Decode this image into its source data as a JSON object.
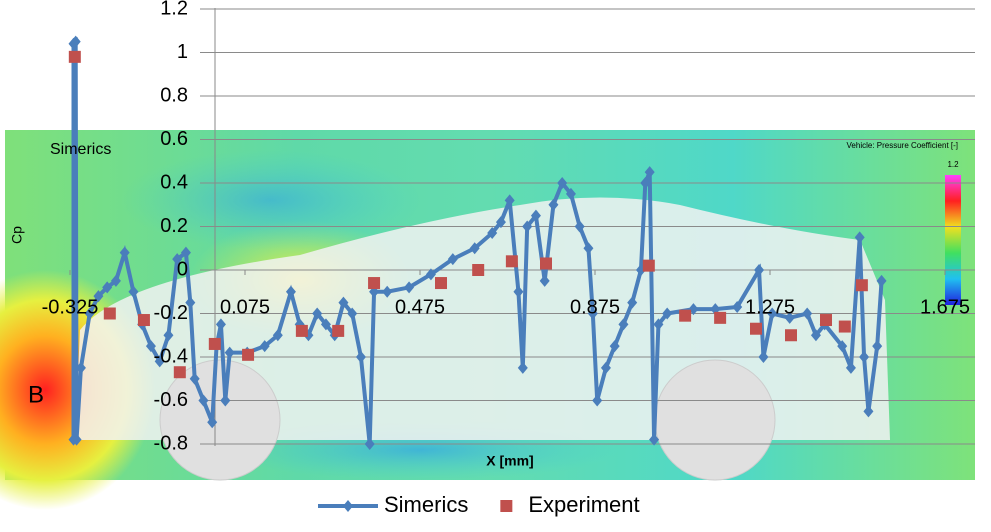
{
  "chart_data": {
    "type": "line",
    "ylabel": "Cp",
    "xlabel": "X [mm]",
    "xlim": [
      -0.325,
      1.675
    ],
    "xticks": [
      -0.325,
      0.075,
      0.475,
      0.875,
      1.275,
      1.675
    ],
    "ylim": [
      -0.8,
      1.2
    ],
    "yticks": [
      1.2,
      1,
      0.8,
      0.6,
      0.4,
      0.2,
      0,
      -0.2,
      -0.4,
      -0.6,
      -0.8
    ],
    "grid": true,
    "annotations": [
      "B",
      "Simerics",
      "Vehicle: Pressure Coefficient [-]",
      "1.2"
    ],
    "series": [
      {
        "name": "Simerics",
        "color": "#4a7ebb",
        "marker": "diamond",
        "line": true,
        "x": [
          -0.317,
          -0.317,
          -0.312,
          -0.31,
          -0.3,
          -0.28,
          -0.26,
          -0.24,
          -0.22,
          -0.2,
          -0.18,
          -0.16,
          -0.14,
          -0.12,
          -0.1,
          -0.08,
          -0.06,
          -0.05,
          -0.04,
          -0.02,
          0.0,
          0.01,
          0.02,
          0.03,
          0.04,
          0.08,
          0.12,
          0.15,
          0.18,
          0.2,
          0.22,
          0.24,
          0.26,
          0.28,
          0.3,
          0.32,
          0.34,
          0.36,
          0.37,
          0.4,
          0.45,
          0.5,
          0.55,
          0.6,
          0.64,
          0.66,
          0.68,
          0.7,
          0.71,
          0.72,
          0.74,
          0.76,
          0.78,
          0.8,
          0.82,
          0.84,
          0.86,
          0.87,
          0.88,
          0.9,
          0.92,
          0.94,
          0.96,
          0.98,
          0.99,
          1.0,
          1.01,
          1.02,
          1.04,
          1.1,
          1.15,
          1.2,
          1.25,
          1.26,
          1.28,
          1.32,
          1.36,
          1.38,
          1.4,
          1.44,
          1.46,
          1.48,
          1.49,
          1.5,
          1.52,
          1.53
        ],
        "values": [
          -0.78,
          1.04,
          1.05,
          -0.78,
          -0.45,
          -0.2,
          -0.12,
          -0.08,
          -0.05,
          0.08,
          -0.1,
          -0.25,
          -0.35,
          -0.42,
          -0.3,
          0.05,
          0.08,
          -0.15,
          -0.5,
          -0.6,
          -0.7,
          -0.35,
          -0.25,
          -0.6,
          -0.38,
          -0.38,
          -0.35,
          -0.3,
          -0.1,
          -0.25,
          -0.3,
          -0.2,
          -0.25,
          -0.3,
          -0.15,
          -0.2,
          -0.4,
          -0.8,
          -0.1,
          -0.1,
          -0.08,
          -0.02,
          0.05,
          0.1,
          0.17,
          0.22,
          0.32,
          -0.1,
          -0.45,
          0.2,
          0.25,
          -0.05,
          0.3,
          0.4,
          0.35,
          0.2,
          0.1,
          -0.2,
          -0.6,
          -0.45,
          -0.35,
          -0.25,
          -0.15,
          0.0,
          0.4,
          0.45,
          -0.78,
          -0.25,
          -0.2,
          -0.18,
          -0.18,
          -0.17,
          0.0,
          -0.4,
          -0.2,
          -0.22,
          -0.2,
          -0.3,
          -0.25,
          -0.35,
          -0.45,
          0.15,
          -0.4,
          -0.65,
          -0.35,
          -0.05
        ]
      },
      {
        "name": "Experiment",
        "color": "#c0504d",
        "marker": "square",
        "line": false,
        "x": [
          -0.314,
          -0.234,
          -0.156,
          -0.074,
          0.006,
          0.082,
          0.205,
          0.288,
          0.37,
          0.523,
          0.608,
          0.685,
          0.763,
          0.998,
          1.081,
          1.161,
          1.243,
          1.323,
          1.403,
          1.446,
          1.485
        ],
        "values": [
          0.98,
          -0.2,
          -0.23,
          -0.47,
          -0.34,
          -0.39,
          -0.28,
          -0.28,
          -0.06,
          -0.06,
          0.0,
          0.04,
          0.03,
          0.02,
          -0.21,
          -0.22,
          -0.27,
          -0.3,
          -0.23,
          -0.26,
          -0.07
        ]
      }
    ]
  }
}
